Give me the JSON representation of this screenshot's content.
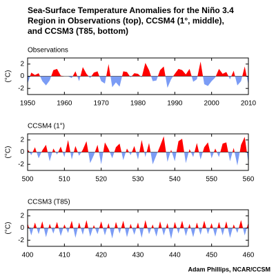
{
  "title": [
    "Sea-Surface Temperature Anomalies for the Niño 3.4",
    "Region in Observations (top), CCSM4 (1°, middle),",
    "and CCSM3 (T85, bottom)"
  ],
  "credit": "Adam Phillips, NCAR/CCSM",
  "chart_data": [
    {
      "type": "area",
      "title": "Observations",
      "ylabel": "(°C)",
      "pos_color": "#ff0000",
      "neg_color": "#7b9cf5",
      "x": [
        1950,
        1951,
        1952,
        1953,
        1954,
        1955,
        1956,
        1957,
        1958,
        1959,
        1960,
        1961,
        1962,
        1963,
        1964,
        1965,
        1966,
        1967,
        1968,
        1969,
        1970,
        1971,
        1972,
        1973,
        1974,
        1975,
        1976,
        1977,
        1978,
        1979,
        1980,
        1981,
        1982,
        1983,
        1984,
        1985,
        1986,
        1987,
        1988,
        1989,
        1990,
        1991,
        1992,
        1993,
        1994,
        1995,
        1996,
        1997,
        1998,
        1999,
        2000,
        2001,
        2002,
        2003,
        2004,
        2005,
        2006,
        2007,
        2008,
        2009,
        2010
      ],
      "values": [
        -1.2,
        0.6,
        0.2,
        0.5,
        -0.8,
        -1.5,
        -0.7,
        1.0,
        1.2,
        0.1,
        0,
        0,
        -0.3,
        0.8,
        -0.8,
        1.5,
        0.4,
        -0.3,
        0.6,
        0.8,
        -0.8,
        -1.2,
        2.0,
        -1.8,
        -1.0,
        -1.7,
        0.8,
        0.7,
        -0.2,
        0.5,
        0.4,
        -0.2,
        2.2,
        1.0,
        -0.8,
        -0.7,
        1.0,
        1.6,
        -1.9,
        -0.5,
        0.4,
        1.2,
        1.0,
        0.3,
        1.2,
        -0.9,
        -0.5,
        2.4,
        -1.3,
        -1.6,
        -0.8,
        -0.2,
        1.2,
        0.4,
        0.7,
        -0.5,
        0.9,
        -1.5,
        -0.8,
        1.6,
        -1.4
      ],
      "xlim": [
        1950,
        2010
      ],
      "xticks": [
        1950,
        1960,
        1970,
        1980,
        1990,
        2000,
        2010
      ],
      "ylim": [
        -3,
        3
      ],
      "yticks": [
        -2,
        0,
        2
      ]
    },
    {
      "type": "area",
      "title": "CCSM4 (1°)",
      "ylabel": "(°C)",
      "pos_color": "#ff0000",
      "neg_color": "#7b9cf5",
      "x": [
        500,
        501,
        502,
        503,
        504,
        505,
        506,
        507,
        508,
        509,
        510,
        511,
        512,
        513,
        514,
        515,
        516,
        517,
        518,
        519,
        520,
        521,
        522,
        523,
        524,
        525,
        526,
        527,
        528,
        529,
        530,
        531,
        532,
        533,
        534,
        535,
        536,
        537,
        538,
        539,
        540,
        541,
        542,
        543,
        544,
        545,
        546,
        547,
        548,
        549,
        550,
        551,
        552,
        553,
        554,
        555,
        556,
        557,
        558,
        559,
        560
      ],
      "values": [
        0.5,
        -0.5,
        0.8,
        -1,
        0.3,
        1.2,
        -1.5,
        0.6,
        -0.4,
        0.9,
        -0.8,
        2.0,
        -1.2,
        1.0,
        -0.6,
        0.4,
        1.8,
        -1.8,
        -0.5,
        1.2,
        -2.0,
        1.6,
        0.5,
        -1.0,
        0.8,
        1.4,
        -1.3,
        0.6,
        -0.5,
        1.0,
        -1.2,
        2.0,
        -0.8,
        1.5,
        -2.0,
        -0.5,
        1.0,
        2.6,
        -1.6,
        0.4,
        -1.5,
        1.8,
        2.2,
        -1.8,
        0.5,
        -0.8,
        1.5,
        -1.2,
        0.8,
        1.6,
        -1.0,
        0.6,
        -0.8,
        1.4,
        1.6,
        -1.5,
        0.7,
        -2.2,
        1.2,
        2.5,
        -1.8
      ],
      "xlim": [
        500,
        560
      ],
      "xticks": [
        500,
        510,
        520,
        530,
        540,
        550,
        560
      ],
      "ylim": [
        -3,
        3
      ],
      "yticks": [
        -2,
        0,
        2
      ]
    },
    {
      "type": "area",
      "title": "CCSM3 (T85)",
      "ylabel": "(°C)",
      "pos_color": "#ff0000",
      "neg_color": "#7b9cf5",
      "x": [
        400,
        401,
        402,
        403,
        404,
        405,
        406,
        407,
        408,
        409,
        410,
        411,
        412,
        413,
        414,
        415,
        416,
        417,
        418,
        419,
        420,
        421,
        422,
        423,
        424,
        425,
        426,
        427,
        428,
        429,
        430,
        431,
        432,
        433,
        434,
        435,
        436,
        437,
        438,
        439,
        440,
        441,
        442,
        443,
        444,
        445,
        446,
        447,
        448,
        449,
        450,
        451,
        452,
        453,
        454,
        455,
        456,
        457,
        458,
        459,
        460
      ],
      "values": [
        0.8,
        -1.2,
        0.9,
        -1.0,
        1.1,
        -1.5,
        0.7,
        -0.9,
        1.0,
        -1.3,
        0.6,
        -0.8,
        1.2,
        -1.6,
        0.9,
        -1.1,
        1.3,
        -1.4,
        0.5,
        -1.0,
        1.1,
        -1.2,
        0.8,
        -1.7,
        1.0,
        -0.9,
        1.2,
        -1.5,
        0.7,
        -1.1,
        0.9,
        -1.6,
        1.3,
        -1.0,
        0.6,
        -1.4,
        1.1,
        -1.2,
        0.8,
        -1.8,
        1.0,
        -0.9,
        1.2,
        -1.3,
        0.7,
        -1.5,
        0.9,
        -1.1,
        1.2,
        -1.0,
        0.8,
        -1.4,
        1.0,
        -1.2,
        1.1,
        -1.6,
        0.6,
        -0.8,
        1.3,
        -1.2,
        0.9
      ],
      "xlim": [
        400,
        460
      ],
      "xticks": [
        400,
        410,
        420,
        430,
        440,
        450,
        460
      ],
      "ylim": [
        -3,
        3
      ],
      "yticks": [
        -2,
        0,
        2
      ]
    }
  ]
}
